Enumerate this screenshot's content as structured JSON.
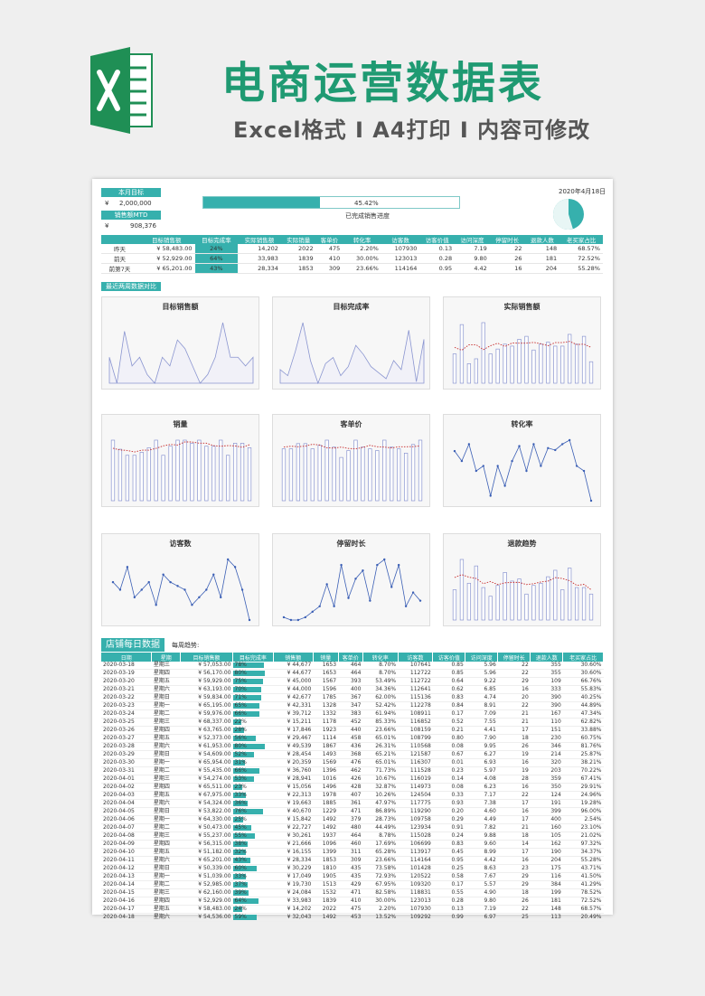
{
  "title": "电商运营数据表",
  "subtitle": "Excel格式 I A4打印 I 内容可修改",
  "header": {
    "monthly_target_label": "本月目标",
    "monthly_target_value": "2,000,000",
    "mtd_label": "销售额MTD",
    "mtd_value": "908,376",
    "currency": "¥",
    "progress_pct": "45.42%",
    "progress_value": 45.42,
    "progress_label": "已完成销售进度",
    "date": "2020年4月18日"
  },
  "compare": {
    "columns": [
      "目标销售额",
      "目标完成率",
      "实际销售额",
      "实际销量",
      "客单价",
      "转化率",
      "访客数",
      "访客价值",
      "访问深度",
      "停留时长",
      "退款人数",
      "老买家占比"
    ],
    "rows": [
      {
        "label": "昨天",
        "target": "58,483.00",
        "rate": "24%",
        "actual": "14,202",
        "qty": "2022",
        "price": "475",
        "conv": "2.20%",
        "visitors": "107930",
        "vvalue": "0.13",
        "depth": "7.19",
        "stay": "22",
        "refund": "148",
        "old": "68.57%"
      },
      {
        "label": "前天",
        "target": "52,929.00",
        "rate": "64%",
        "actual": "33,983",
        "qty": "1839",
        "price": "410",
        "conv": "30.00%",
        "visitors": "123013",
        "vvalue": "0.28",
        "depth": "9.80",
        "stay": "26",
        "refund": "181",
        "old": "72.52%"
      },
      {
        "label": "前第7天",
        "target": "65,201.00",
        "rate": "43%",
        "actual": "28,334",
        "qty": "1853",
        "price": "309",
        "conv": "23.66%",
        "visitors": "114164",
        "vvalue": "0.95",
        "depth": "4.42",
        "stay": "16",
        "refund": "204",
        "old": "55.28%"
      }
    ]
  },
  "section_recent": "最近两周数据对比",
  "charts": [
    {
      "title": "目标销售额",
      "type": "area",
      "values": [
        57,
        54,
        60,
        56,
        57,
        55,
        54,
        57,
        56,
        59,
        58,
        56,
        54,
        55,
        57,
        61,
        57,
        57,
        56,
        57
      ]
    },
    {
      "title": "目标完成率",
      "type": "area",
      "values": [
        24,
        20,
        36,
        55,
        30,
        15,
        28,
        32,
        20,
        26,
        40,
        34,
        26,
        22,
        18,
        30,
        24,
        50,
        16,
        44
      ]
    },
    {
      "title": "实际销售额",
      "type": "bar",
      "values": [
        30,
        60,
        20,
        25,
        62,
        30,
        35,
        40,
        38,
        45,
        48,
        34,
        40,
        42,
        38,
        38,
        50,
        40,
        48,
        22
      ]
    },
    {
      "title": "销量",
      "type": "bar",
      "values": [
        40,
        34,
        30,
        30,
        32,
        35,
        40,
        30,
        36,
        40,
        40,
        38,
        40,
        36,
        36,
        40,
        30,
        38,
        38,
        35
      ]
    },
    {
      "title": "客单价",
      "type": "bar",
      "values": [
        60,
        60,
        66,
        66,
        60,
        64,
        70,
        62,
        50,
        58,
        70,
        62,
        60,
        58,
        70,
        62,
        60,
        55,
        65,
        70
      ]
    },
    {
      "title": "转化率",
      "type": "line",
      "values": [
        55,
        45,
        62,
        35,
        40,
        10,
        40,
        20,
        45,
        60,
        35,
        62,
        40,
        58,
        56,
        62,
        66,
        40,
        35,
        5
      ]
    },
    {
      "title": "访客数",
      "type": "line",
      "values": [
        64,
        62,
        68,
        60,
        62,
        64,
        58,
        66,
        64,
        63,
        62,
        58,
        60,
        62,
        66,
        60,
        70,
        68,
        62,
        54
      ]
    },
    {
      "title": "停留时长",
      "type": "line",
      "values": [
        22,
        20,
        20,
        22,
        26,
        30,
        46,
        30,
        60,
        36,
        50,
        56,
        34,
        60,
        64,
        44,
        60,
        30,
        40,
        34
      ]
    },
    {
      "title": "退款趋势",
      "type": "bar",
      "values": [
        140,
        280,
        170,
        250,
        150,
        110,
        160,
        220,
        180,
        190,
        120,
        160,
        170,
        200,
        230,
        140,
        240,
        150,
        150,
        120
      ]
    }
  ],
  "store": {
    "title": "店铺每日数据",
    "weekly_label": "每周趋势:"
  },
  "table": {
    "columns": [
      "日期",
      "星期",
      "目标销售额",
      "目标完成率",
      "销售额",
      "销量",
      "客单价",
      "转化率",
      "访客数",
      "访客价值",
      "访问深度",
      "停留时长",
      "退款人数",
      "老买家占比"
    ],
    "rows": [
      [
        "2020-03-18",
        "星期三",
        "57,053.00",
        "78%",
        "44,677",
        "1653",
        "464",
        "8.70%",
        "107641",
        "0.85",
        "5.96",
        "22",
        "355",
        "30.60%"
      ],
      [
        "2020-03-19",
        "星期四",
        "56,170.00",
        "80%",
        "44,677",
        "1653",
        "464",
        "8.70%",
        "112722",
        "0.85",
        "5.96",
        "22",
        "355",
        "30.60%"
      ],
      [
        "2020-03-20",
        "星期五",
        "59,929.00",
        "75%",
        "45,000",
        "1567",
        "393",
        "53.49%",
        "112722",
        "0.64",
        "9.22",
        "29",
        "109",
        "66.76%"
      ],
      [
        "2020-03-21",
        "星期六",
        "63,193.00",
        "70%",
        "44,000",
        "1596",
        "400",
        "34.36%",
        "112641",
        "0.62",
        "6.85",
        "16",
        "333",
        "55.83%"
      ],
      [
        "2020-03-22",
        "星期日",
        "59,834.00",
        "71%",
        "42,677",
        "1785",
        "367",
        "62.00%",
        "115136",
        "0.83",
        "4.74",
        "20",
        "390",
        "40.25%"
      ],
      [
        "2020-03-23",
        "星期一",
        "65,195.00",
        "65%",
        "42,331",
        "1328",
        "347",
        "52.42%",
        "112278",
        "0.84",
        "8.91",
        "22",
        "390",
        "44.89%"
      ],
      [
        "2020-03-24",
        "星期二",
        "59,976.00",
        "66%",
        "39,712",
        "1332",
        "383",
        "61.94%",
        "108911",
        "0.17",
        "7.09",
        "21",
        "167",
        "47.34%"
      ],
      [
        "2020-03-25",
        "星期三",
        "68,337.00",
        "22%",
        "15,211",
        "1178",
        "452",
        "85.33%",
        "116852",
        "0.52",
        "7.55",
        "21",
        "110",
        "62.82%"
      ],
      [
        "2020-03-26",
        "星期四",
        "63,765.00",
        "28%",
        "17,846",
        "1923",
        "440",
        "23.66%",
        "108159",
        "0.21",
        "4.41",
        "17",
        "151",
        "33.88%"
      ],
      [
        "2020-03-27",
        "星期五",
        "52,373.00",
        "56%",
        "29,467",
        "1114",
        "458",
        "65.01%",
        "108799",
        "0.80",
        "7.90",
        "18",
        "230",
        "60.75%"
      ],
      [
        "2020-03-28",
        "星期六",
        "61,953.00",
        "80%",
        "49,539",
        "1867",
        "436",
        "26.31%",
        "110568",
        "0.08",
        "9.95",
        "26",
        "346",
        "81.76%"
      ],
      [
        "2020-03-29",
        "星期日",
        "54,609.00",
        "52%",
        "28,454",
        "1493",
        "368",
        "65.21%",
        "121587",
        "0.67",
        "6.27",
        "19",
        "214",
        "25.87%"
      ],
      [
        "2020-03-30",
        "星期一",
        "65,954.00",
        "31%",
        "20,359",
        "1569",
        "476",
        "65.01%",
        "116307",
        "0.01",
        "6.93",
        "16",
        "320",
        "38.21%"
      ],
      [
        "2020-03-31",
        "星期二",
        "55,435.00",
        "66%",
        "36,760",
        "1396",
        "462",
        "71.73%",
        "111528",
        "0.23",
        "5.97",
        "19",
        "203",
        "70.22%"
      ],
      [
        "2020-04-01",
        "星期三",
        "54,274.00",
        "53%",
        "28,941",
        "1016",
        "426",
        "10.67%",
        "116019",
        "0.14",
        "4.08",
        "28",
        "359",
        "67.41%"
      ],
      [
        "2020-04-02",
        "星期四",
        "65,511.00",
        "23%",
        "15,056",
        "1496",
        "428",
        "32.87%",
        "114973",
        "0.08",
        "6.23",
        "16",
        "350",
        "29.91%"
      ],
      [
        "2020-04-03",
        "星期五",
        "67,975.00",
        "33%",
        "22,313",
        "1978",
        "407",
        "10.26%",
        "124504",
        "0.33",
        "7.17",
        "22",
        "124",
        "24.96%"
      ],
      [
        "2020-04-04",
        "星期六",
        "54,324.00",
        "36%",
        "19,663",
        "1885",
        "361",
        "47.97%",
        "117775",
        "0.93",
        "7.38",
        "17",
        "191",
        "19.28%"
      ],
      [
        "2020-04-05",
        "星期日",
        "53,822.00",
        "76%",
        "40,670",
        "1229",
        "471",
        "86.89%",
        "119290",
        "0.20",
        "4.60",
        "16",
        "399",
        "96.00%"
      ],
      [
        "2020-04-06",
        "星期一",
        "64,330.00",
        "25%",
        "15,842",
        "1492",
        "379",
        "28.73%",
        "109758",
        "0.29",
        "4.49",
        "17",
        "400",
        "2.54%"
      ],
      [
        "2020-04-07",
        "星期二",
        "50,473.00",
        "45%",
        "22,727",
        "1492",
        "480",
        "44.49%",
        "123934",
        "0.91",
        "7.82",
        "21",
        "160",
        "23.10%"
      ],
      [
        "2020-04-08",
        "星期三",
        "55,237.00",
        "55%",
        "30,261",
        "1937",
        "464",
        "8.78%",
        "115028",
        "0.24",
        "9.88",
        "18",
        "105",
        "21.02%"
      ],
      [
        "2020-04-09",
        "星期四",
        "56,315.00",
        "38%",
        "21,666",
        "1096",
        "460",
        "17.69%",
        "106699",
        "0.83",
        "9.60",
        "14",
        "162",
        "97.32%"
      ],
      [
        "2020-04-10",
        "星期五",
        "51,182.00",
        "32%",
        "16,155",
        "1399",
        "311",
        "65.28%",
        "113917",
        "0.45",
        "8.99",
        "17",
        "190",
        "34.37%"
      ],
      [
        "2020-04-11",
        "星期六",
        "65,201.00",
        "43%",
        "28,334",
        "1853",
        "309",
        "23.66%",
        "114164",
        "0.95",
        "4.42",
        "16",
        "204",
        "55.28%"
      ],
      [
        "2020-04-12",
        "星期日",
        "50,339.00",
        "60%",
        "30,229",
        "1810",
        "435",
        "73.58%",
        "101428",
        "0.25",
        "8.63",
        "23",
        "175",
        "43.71%"
      ],
      [
        "2020-04-13",
        "星期一",
        "51,039.00",
        "33%",
        "17,049",
        "1905",
        "435",
        "72.93%",
        "120522",
        "0.58",
        "7.67",
        "29",
        "116",
        "41.50%"
      ],
      [
        "2020-04-14",
        "星期二",
        "52,985.00",
        "37%",
        "19,730",
        "1513",
        "429",
        "67.95%",
        "109320",
        "0.17",
        "5.57",
        "29",
        "384",
        "41.29%"
      ],
      [
        "2020-04-15",
        "星期三",
        "62,160.00",
        "39%",
        "24,084",
        "1532",
        "471",
        "82.58%",
        "118831",
        "0.55",
        "4.90",
        "18",
        "199",
        "78.52%"
      ],
      [
        "2020-04-16",
        "星期四",
        "52,929.00",
        "64%",
        "33,983",
        "1839",
        "410",
        "30.00%",
        "123013",
        "0.28",
        "9.80",
        "26",
        "181",
        "72.52%"
      ],
      [
        "2020-04-17",
        "星期五",
        "58,483.00",
        "24%",
        "14,202",
        "2022",
        "475",
        "2.20%",
        "107930",
        "0.13",
        "7.19",
        "22",
        "148",
        "68.57%"
      ],
      [
        "2020-04-18",
        "星期六",
        "54,536.00",
        "59%",
        "32,043",
        "1492",
        "453",
        "13.52%",
        "109292",
        "0.99",
        "6.97",
        "25",
        "113",
        "20.49%"
      ]
    ]
  }
}
